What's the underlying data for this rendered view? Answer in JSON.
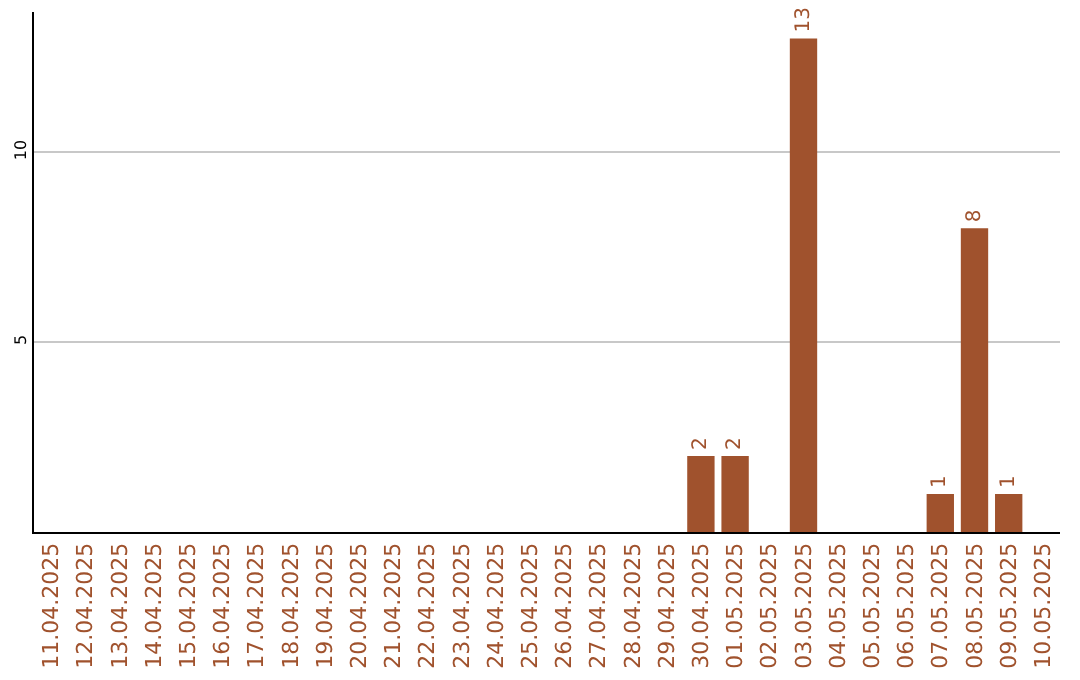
{
  "chart_data": {
    "type": "bar",
    "categories": [
      "11.04.2025",
      "12.04.2025",
      "13.04.2025",
      "14.04.2025",
      "15.04.2025",
      "16.04.2025",
      "17.04.2025",
      "18.04.2025",
      "19.04.2025",
      "20.04.2025",
      "21.04.2025",
      "22.04.2025",
      "23.04.2025",
      "24.04.2025",
      "25.04.2025",
      "26.04.2025",
      "27.04.2025",
      "28.04.2025",
      "29.04.2025",
      "30.04.2025",
      "01.05.2025",
      "02.05.2025",
      "03.05.2025",
      "04.05.2025",
      "05.05.2025",
      "06.05.2025",
      "07.05.2025",
      "08.05.2025",
      "09.05.2025",
      "10.05.2025"
    ],
    "values": [
      null,
      null,
      null,
      null,
      null,
      null,
      null,
      null,
      null,
      null,
      null,
      null,
      null,
      null,
      null,
      null,
      null,
      null,
      null,
      2,
      2,
      null,
      13,
      null,
      null,
      null,
      1,
      8,
      1,
      null
    ],
    "value_labels": [
      null,
      null,
      null,
      null,
      null,
      null,
      null,
      null,
      null,
      null,
      null,
      null,
      null,
      null,
      null,
      null,
      null,
      null,
      null,
      "2",
      "2",
      null,
      "13",
      null,
      null,
      null,
      "1",
      "8",
      "1",
      null
    ],
    "color": "#a0522d",
    "ylim": [
      0,
      13.7
    ],
    "yticks": [
      5,
      10
    ],
    "grid": "y",
    "legend": false
  }
}
